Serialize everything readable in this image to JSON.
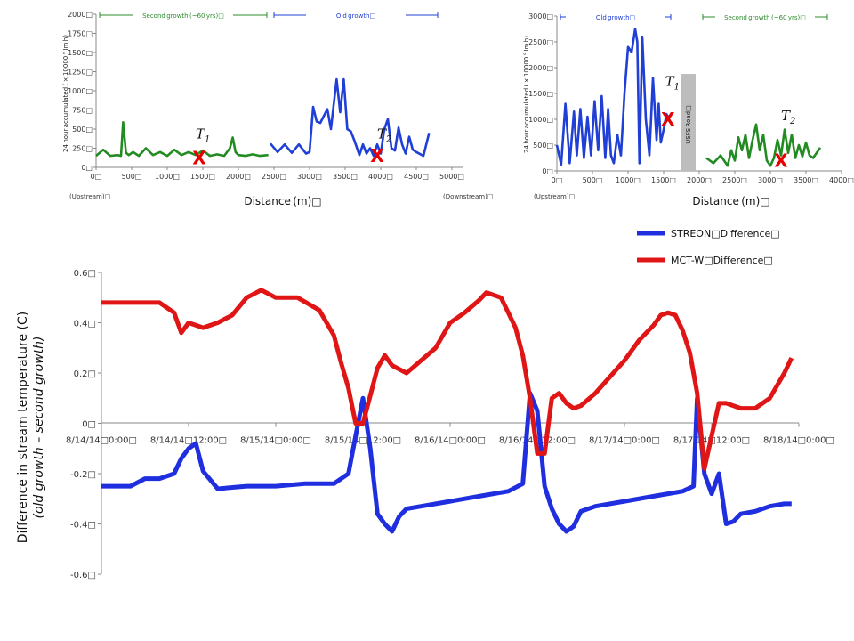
{
  "chart_data": [
    {
      "type": "line",
      "panel": "top-left",
      "xlabel": "Distance (m)□",
      "ylabel": "24 hour accumulated ( × 10000 ° Im h)",
      "xlim": [
        0,
        5000
      ],
      "ylim": [
        0,
        2000
      ],
      "x_ticks": [
        "0□",
        "500□",
        "1000□",
        "1500□",
        "2000□",
        "2500□",
        "3000□",
        "3500□",
        "4000□",
        "4500□",
        "5000□"
      ],
      "y_ticks": [
        "0□",
        "250□",
        "500□",
        "750□",
        "1000□",
        "1250□",
        "1500□",
        "1750□",
        "2000□"
      ],
      "upstream_label": "(Upstream)□",
      "downstream_label": "(Downstream)□",
      "brackets": [
        {
          "label": "Second growth (~60 yrs)□",
          "x0": 0,
          "x1": 2450,
          "color": "#2e8b2e"
        },
        {
          "label": "Old growth□",
          "x0": 2450,
          "x1": 4850,
          "color": "#1f3fd6"
        }
      ],
      "markers": [
        {
          "label": "T1",
          "sub": "1",
          "x": 1400,
          "y": 380
        },
        {
          "label": "T2",
          "sub": "2",
          "x": 3950,
          "y": 380
        }
      ],
      "x_marks": [
        {
          "x": 1450,
          "y": 120
        },
        {
          "x": 3950,
          "y": 150
        }
      ],
      "series": [
        {
          "name": "",
          "color": "#228b22",
          "x": [
            0,
            100,
            200,
            300,
            350,
            380,
            420,
            460,
            520,
            600,
            700,
            800,
            900,
            1000,
            1100,
            1200,
            1300,
            1400,
            1500,
            1600,
            1700,
            1800,
            1880,
            1920,
            1960,
            2000,
            2100,
            2200,
            2300,
            2420
          ],
          "y": [
            150,
            230,
            150,
            160,
            150,
            590,
            190,
            160,
            200,
            150,
            250,
            160,
            200,
            150,
            230,
            160,
            200,
            160,
            220,
            150,
            170,
            150,
            250,
            390,
            200,
            160,
            150,
            170,
            150,
            160
          ]
        },
        {
          "name": "",
          "color": "#1f3fd6",
          "x": [
            2450,
            2550,
            2650,
            2750,
            2850,
            2950,
            3000,
            3050,
            3100,
            3150,
            3250,
            3300,
            3380,
            3430,
            3480,
            3530,
            3580,
            3630,
            3700,
            3750,
            3800,
            3850,
            3900,
            3950,
            4000,
            4050,
            4100,
            4150,
            4200,
            4250,
            4300,
            4350,
            4400,
            4450,
            4500,
            4600,
            4680
          ],
          "y": [
            310,
            200,
            300,
            190,
            300,
            180,
            200,
            790,
            600,
            580,
            760,
            500,
            1150,
            720,
            1150,
            500,
            470,
            350,
            160,
            300,
            180,
            250,
            150,
            300,
            180,
            500,
            630,
            250,
            220,
            520,
            300,
            180,
            400,
            230,
            200,
            150,
            450
          ]
        }
      ]
    },
    {
      "type": "line",
      "panel": "top-right",
      "xlabel": "Distance (m)□",
      "ylabel": "24 hour accumulated ( × 10000 ° Im h)",
      "xlim": [
        0,
        4000
      ],
      "ylim": [
        0,
        3000
      ],
      "x_ticks": [
        "0□",
        "500□",
        "1000□",
        "1500□",
        "2000□",
        "2500□",
        "3000□",
        "3500□",
        "4000□"
      ],
      "y_ticks": [
        "0□",
        "500□",
        "1000□",
        "1500□",
        "2000□",
        "2500□",
        "3000□"
      ],
      "upstream_label": "(Upstream)□",
      "road_label": "USFS Road□",
      "brackets": [
        {
          "label": "Old growth□",
          "x0": 0,
          "x1": 1650,
          "color": "#1f3fd6"
        },
        {
          "label": "Second growth (~60 yrs)□",
          "x0": 2000,
          "x1": 3850,
          "color": "#2e8b2e"
        }
      ],
      "markers": [
        {
          "label": "T1",
          "sub": "1",
          "x": 1520,
          "y": 1650
        },
        {
          "label": "T2",
          "sub": "2",
          "x": 3150,
          "y": 980
        }
      ],
      "x_marks": [
        {
          "x": 1560,
          "y": 1000
        },
        {
          "x": 3150,
          "y": 200
        }
      ],
      "series": [
        {
          "name": "",
          "color": "#1f3fd6",
          "x": [
            0,
            60,
            120,
            180,
            240,
            280,
            330,
            380,
            430,
            480,
            530,
            580,
            630,
            680,
            720,
            760,
            800,
            850,
            900,
            950,
            1000,
            1050,
            1100,
            1130,
            1160,
            1200,
            1250,
            1300,
            1350,
            1400,
            1430,
            1460,
            1500,
            1540,
            1580
          ],
          "y": [
            500,
            120,
            1300,
            150,
            1150,
            300,
            1200,
            250,
            1050,
            300,
            1350,
            400,
            1450,
            250,
            1200,
            300,
            150,
            700,
            300,
            1500,
            2400,
            2300,
            2750,
            2500,
            150,
            2600,
            1000,
            300,
            1800,
            600,
            1300,
            550,
            800,
            1100,
            1000
          ]
        },
        {
          "name": "",
          "color": "#228b22",
          "x": [
            2100,
            2200,
            2300,
            2400,
            2450,
            2500,
            2550,
            2600,
            2650,
            2700,
            2750,
            2800,
            2850,
            2900,
            2950,
            3000,
            3050,
            3100,
            3150,
            3200,
            3250,
            3300,
            3350,
            3400,
            3450,
            3500,
            3550,
            3600,
            3650,
            3700
          ],
          "y": [
            250,
            150,
            300,
            100,
            400,
            200,
            650,
            400,
            700,
            250,
            600,
            900,
            400,
            700,
            200,
            100,
            250,
            600,
            300,
            800,
            350,
            700,
            250,
            500,
            280,
            550,
            300,
            250,
            350,
            450
          ]
        }
      ]
    },
    {
      "type": "line",
      "panel": "bottom",
      "ylabel": "Difference in stream temperature (C)",
      "ylabel2": "(old growth – second growth)",
      "ylim": [
        -0.6,
        0.6
      ],
      "y_ticks": [
        "0.6□",
        "0.4□",
        "0.2□",
        "0□",
        "-0.2□",
        "-0.4□",
        "-0.6□"
      ],
      "x_ticks": [
        "8/14/14□0:00□",
        "8/14/14□12:00□",
        "8/15/14□0:00□",
        "8/15/14□12:00□",
        "8/16/14□0:00□",
        "8/16/14□12:00□",
        "8/17/14□0:00□",
        "8/17/14□12:00□",
        "8/18/14□0:00□"
      ],
      "x_units": "hours from 8/14/14 0:00",
      "xlim": [
        0,
        96
      ],
      "legend": [
        {
          "label": "STREON□Difference□",
          "color": "#1f2fe0"
        },
        {
          "label": "MCT-W□Difference□",
          "color": "#e01515"
        }
      ],
      "series": [
        {
          "name": "STREON□Difference□",
          "color": "#1f2fe0",
          "x": [
            0,
            4,
            6,
            8,
            10,
            11,
            12,
            13,
            14,
            16,
            20,
            24,
            28,
            32,
            34,
            35,
            36,
            37,
            38,
            39,
            40,
            41,
            42,
            44,
            48,
            52,
            56,
            58,
            59,
            60,
            61,
            62,
            63,
            64,
            65,
            66,
            68,
            72,
            76,
            80,
            81.5,
            82,
            83,
            84,
            85,
            86,
            87,
            88,
            90,
            92,
            94,
            95
          ],
          "y": [
            -0.25,
            -0.25,
            -0.22,
            -0.22,
            -0.2,
            -0.14,
            -0.1,
            -0.08,
            -0.19,
            -0.26,
            -0.25,
            -0.25,
            -0.24,
            -0.24,
            -0.2,
            -0.05,
            0.1,
            -0.1,
            -0.36,
            -0.4,
            -0.43,
            -0.37,
            -0.34,
            -0.33,
            -0.31,
            -0.29,
            -0.27,
            -0.24,
            0.12,
            0.05,
            -0.25,
            -0.34,
            -0.4,
            -0.43,
            -0.41,
            -0.35,
            -0.33,
            -0.31,
            -0.29,
            -0.27,
            -0.25,
            0.1,
            -0.2,
            -0.28,
            -0.2,
            -0.4,
            -0.39,
            -0.36,
            -0.35,
            -0.33,
            -0.32,
            -0.32
          ]
        },
        {
          "name": "MCT-W□Difference□",
          "color": "#e01515",
          "x": [
            0,
            2,
            4,
            8,
            10,
            11,
            12,
            14,
            16,
            18,
            20,
            22,
            24,
            27,
            30,
            32,
            33,
            34,
            35,
            36,
            37,
            38,
            39,
            40,
            42,
            46,
            48,
            50,
            52,
            53,
            55,
            57,
            58,
            59,
            60,
            61,
            62,
            63,
            64,
            65,
            66,
            68,
            72,
            74,
            76,
            77,
            78,
            79,
            80,
            81,
            82,
            83,
            84,
            85,
            86,
            88,
            90,
            92,
            94,
            95
          ],
          "y": [
            0.48,
            0.48,
            0.48,
            0.48,
            0.44,
            0.36,
            0.4,
            0.38,
            0.4,
            0.43,
            0.5,
            0.53,
            0.5,
            0.5,
            0.45,
            0.35,
            0.24,
            0.14,
            0.0,
            0.0,
            0.11,
            0.22,
            0.27,
            0.23,
            0.2,
            0.3,
            0.4,
            0.44,
            0.49,
            0.52,
            0.5,
            0.38,
            0.27,
            0.1,
            -0.12,
            -0.12,
            0.1,
            0.12,
            0.08,
            0.06,
            0.07,
            0.12,
            0.25,
            0.33,
            0.39,
            0.43,
            0.44,
            0.43,
            0.37,
            0.28,
            0.12,
            -0.18,
            -0.05,
            0.08,
            0.08,
            0.06,
            0.06,
            0.1,
            0.2,
            0.26
          ]
        }
      ]
    }
  ]
}
